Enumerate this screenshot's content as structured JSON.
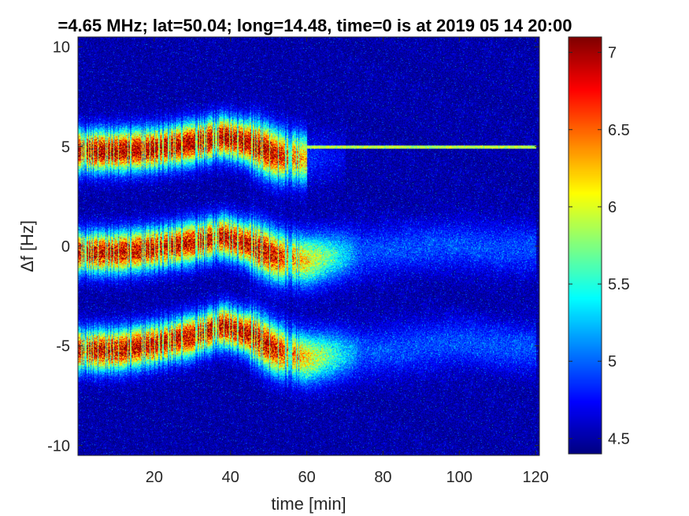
{
  "chart_data": {
    "type": "heatmap",
    "title": "=4.65 MHz;  lat=50.04; long=14.48, time=0 is at 2019 05 14 20:00",
    "xlabel": "time [min]",
    "ylabel": "Δf [Hz]",
    "xlim": [
      0,
      121
    ],
    "ylim": [
      -10.5,
      10.5
    ],
    "x_ticks": [
      20,
      40,
      60,
      80,
      100,
      120
    ],
    "x_tick_labels": [
      "20",
      "40",
      "60",
      "80",
      "100",
      "120"
    ],
    "y_ticks": [
      10,
      5,
      0,
      -5,
      -10
    ],
    "y_tick_labels": [
      "10",
      "5",
      "0",
      "-5",
      "-10"
    ],
    "grid": false,
    "colormap": "jet",
    "colorbar": {
      "clim": [
        4.4,
        7.1
      ],
      "ticks": [
        7,
        6.5,
        6,
        5.5,
        5,
        4.5
      ],
      "tick_labels": [
        "7",
        "6.5",
        "6",
        "5.5",
        "5",
        "4.5"
      ]
    },
    "traces": [
      {
        "center_hz": [
          [
            0,
            4.8
          ],
          [
            10,
            4.8
          ],
          [
            20,
            4.9
          ],
          [
            30,
            5.2
          ],
          [
            38,
            5.5
          ],
          [
            45,
            5.2
          ],
          [
            52,
            4.6
          ],
          [
            60,
            4.4
          ],
          [
            70,
            4.6
          ]
        ],
        "peak_value": 7.0
      },
      {
        "center_hz": [
          [
            0,
            -0.3
          ],
          [
            10,
            -0.3
          ],
          [
            20,
            -0.1
          ],
          [
            30,
            0.2
          ],
          [
            38,
            0.5
          ],
          [
            45,
            0.1
          ],
          [
            52,
            -0.5
          ],
          [
            60,
            -0.7
          ],
          [
            70,
            -0.4
          ],
          [
            90,
            0.0
          ],
          [
            100,
            0.1
          ],
          [
            110,
            -0.1
          ],
          [
            120,
            -0.1
          ]
        ],
        "peak_value": 6.9
      },
      {
        "center_hz": [
          [
            0,
            -5.2
          ],
          [
            10,
            -5.2
          ],
          [
            20,
            -4.9
          ],
          [
            30,
            -4.5
          ],
          [
            38,
            -4.0
          ],
          [
            45,
            -4.4
          ],
          [
            52,
            -5.2
          ],
          [
            60,
            -5.6
          ],
          [
            70,
            -5.4
          ],
          [
            90,
            -5.0
          ],
          [
            100,
            -4.8
          ],
          [
            110,
            -5.0
          ],
          [
            120,
            -5.1
          ]
        ],
        "peak_value": 6.9
      },
      {
        "type": "line",
        "x_range": [
          60,
          120
        ],
        "y_hz": 5.0,
        "value": 5.9
      }
    ],
    "background_value": 4.5
  }
}
